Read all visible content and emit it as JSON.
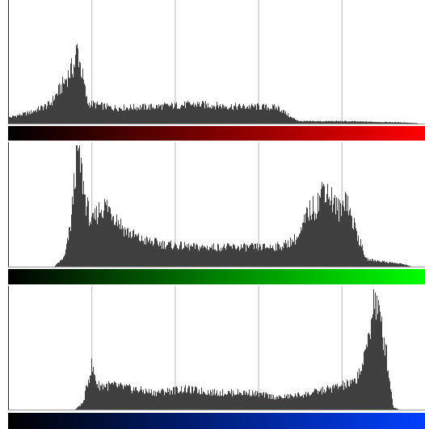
{
  "histogram_viewer": {
    "gridline_fractions": [
      0.2,
      0.4,
      0.6,
      0.8
    ],
    "bar_color": "#404040",
    "gridline_color": "#b8b8b8"
  },
  "channels": [
    {
      "name": "red",
      "gradient": [
        "#000000",
        "#ff0000"
      ],
      "peaks": [
        [
          0.0,
          0.05
        ],
        [
          0.05,
          0.09
        ],
        [
          0.1,
          0.16
        ],
        [
          0.13,
          0.32
        ],
        [
          0.16,
          0.5
        ],
        [
          0.165,
          0.63
        ],
        [
          0.175,
          0.45
        ],
        [
          0.19,
          0.17
        ],
        [
          0.25,
          0.13
        ],
        [
          0.35,
          0.14
        ],
        [
          0.45,
          0.16
        ],
        [
          0.55,
          0.14
        ],
        [
          0.6,
          0.14
        ],
        [
          0.65,
          0.13
        ],
        [
          0.68,
          0.05
        ],
        [
          0.7,
          0.02
        ],
        [
          0.8,
          0.02
        ],
        [
          0.95,
          0.01
        ],
        [
          1.0,
          0.0
        ]
      ]
    },
    {
      "name": "green",
      "gradient": [
        "#000000",
        "#00ff00"
      ],
      "peaks": [
        [
          0.0,
          0.0
        ],
        [
          0.11,
          0.0
        ],
        [
          0.135,
          0.08
        ],
        [
          0.15,
          0.35
        ],
        [
          0.165,
          0.99
        ],
        [
          0.175,
          0.8
        ],
        [
          0.185,
          0.55
        ],
        [
          0.2,
          0.35
        ],
        [
          0.22,
          0.48
        ],
        [
          0.235,
          0.5
        ],
        [
          0.25,
          0.45
        ],
        [
          0.28,
          0.3
        ],
        [
          0.32,
          0.22
        ],
        [
          0.38,
          0.18
        ],
        [
          0.45,
          0.16
        ],
        [
          0.55,
          0.16
        ],
        [
          0.62,
          0.16
        ],
        [
          0.66,
          0.17
        ],
        [
          0.7,
          0.25
        ],
        [
          0.72,
          0.45
        ],
        [
          0.74,
          0.5
        ],
        [
          0.76,
          0.68
        ],
        [
          0.77,
          0.6
        ],
        [
          0.79,
          0.48
        ],
        [
          0.8,
          0.45
        ],
        [
          0.81,
          0.62
        ],
        [
          0.82,
          0.45
        ],
        [
          0.84,
          0.25
        ],
        [
          0.86,
          0.06
        ],
        [
          0.95,
          0.02
        ],
        [
          0.97,
          0.0
        ],
        [
          1.0,
          0.0
        ]
      ]
    },
    {
      "name": "blue",
      "gradient": [
        "#000000",
        "#0040ff"
      ],
      "peaks": [
        [
          0.0,
          0.0
        ],
        [
          0.16,
          0.0
        ],
        [
          0.18,
          0.06
        ],
        [
          0.19,
          0.22
        ],
        [
          0.2,
          0.36
        ],
        [
          0.215,
          0.2
        ],
        [
          0.25,
          0.2
        ],
        [
          0.3,
          0.17
        ],
        [
          0.35,
          0.14
        ],
        [
          0.42,
          0.17
        ],
        [
          0.5,
          0.14
        ],
        [
          0.58,
          0.14
        ],
        [
          0.65,
          0.1
        ],
        [
          0.72,
          0.13
        ],
        [
          0.78,
          0.18
        ],
        [
          0.83,
          0.22
        ],
        [
          0.855,
          0.4
        ],
        [
          0.87,
          0.72
        ],
        [
          0.88,
          0.95
        ],
        [
          0.89,
          0.78
        ],
        [
          0.905,
          0.55
        ],
        [
          0.915,
          0.28
        ],
        [
          0.925,
          0.02
        ],
        [
          0.94,
          0.0
        ],
        [
          1.0,
          0.0
        ]
      ]
    }
  ]
}
